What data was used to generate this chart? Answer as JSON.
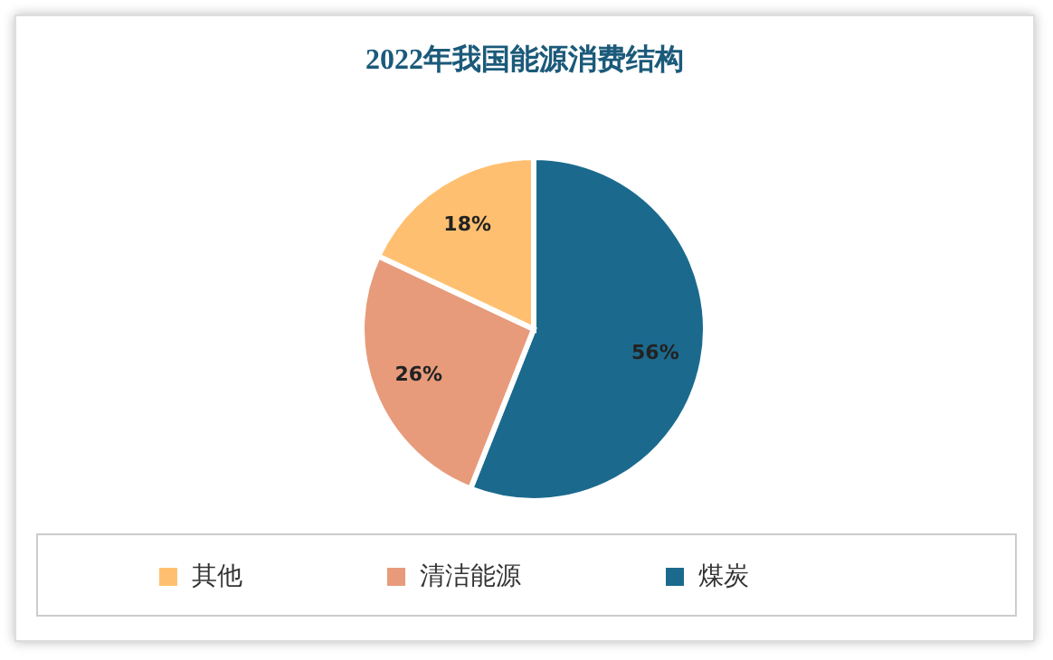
{
  "chart_data": {
    "type": "pie",
    "title": "2022年我国能源消费结构",
    "categories": [
      "煤炭",
      "清洁能源",
      "其他"
    ],
    "values": [
      56,
      26,
      18
    ],
    "colors": [
      "#1b6a8e",
      "#e79b7b",
      "#fec070"
    ],
    "value_labels": [
      "56%",
      "26%",
      "18%"
    ],
    "legend": "bottom"
  }
}
